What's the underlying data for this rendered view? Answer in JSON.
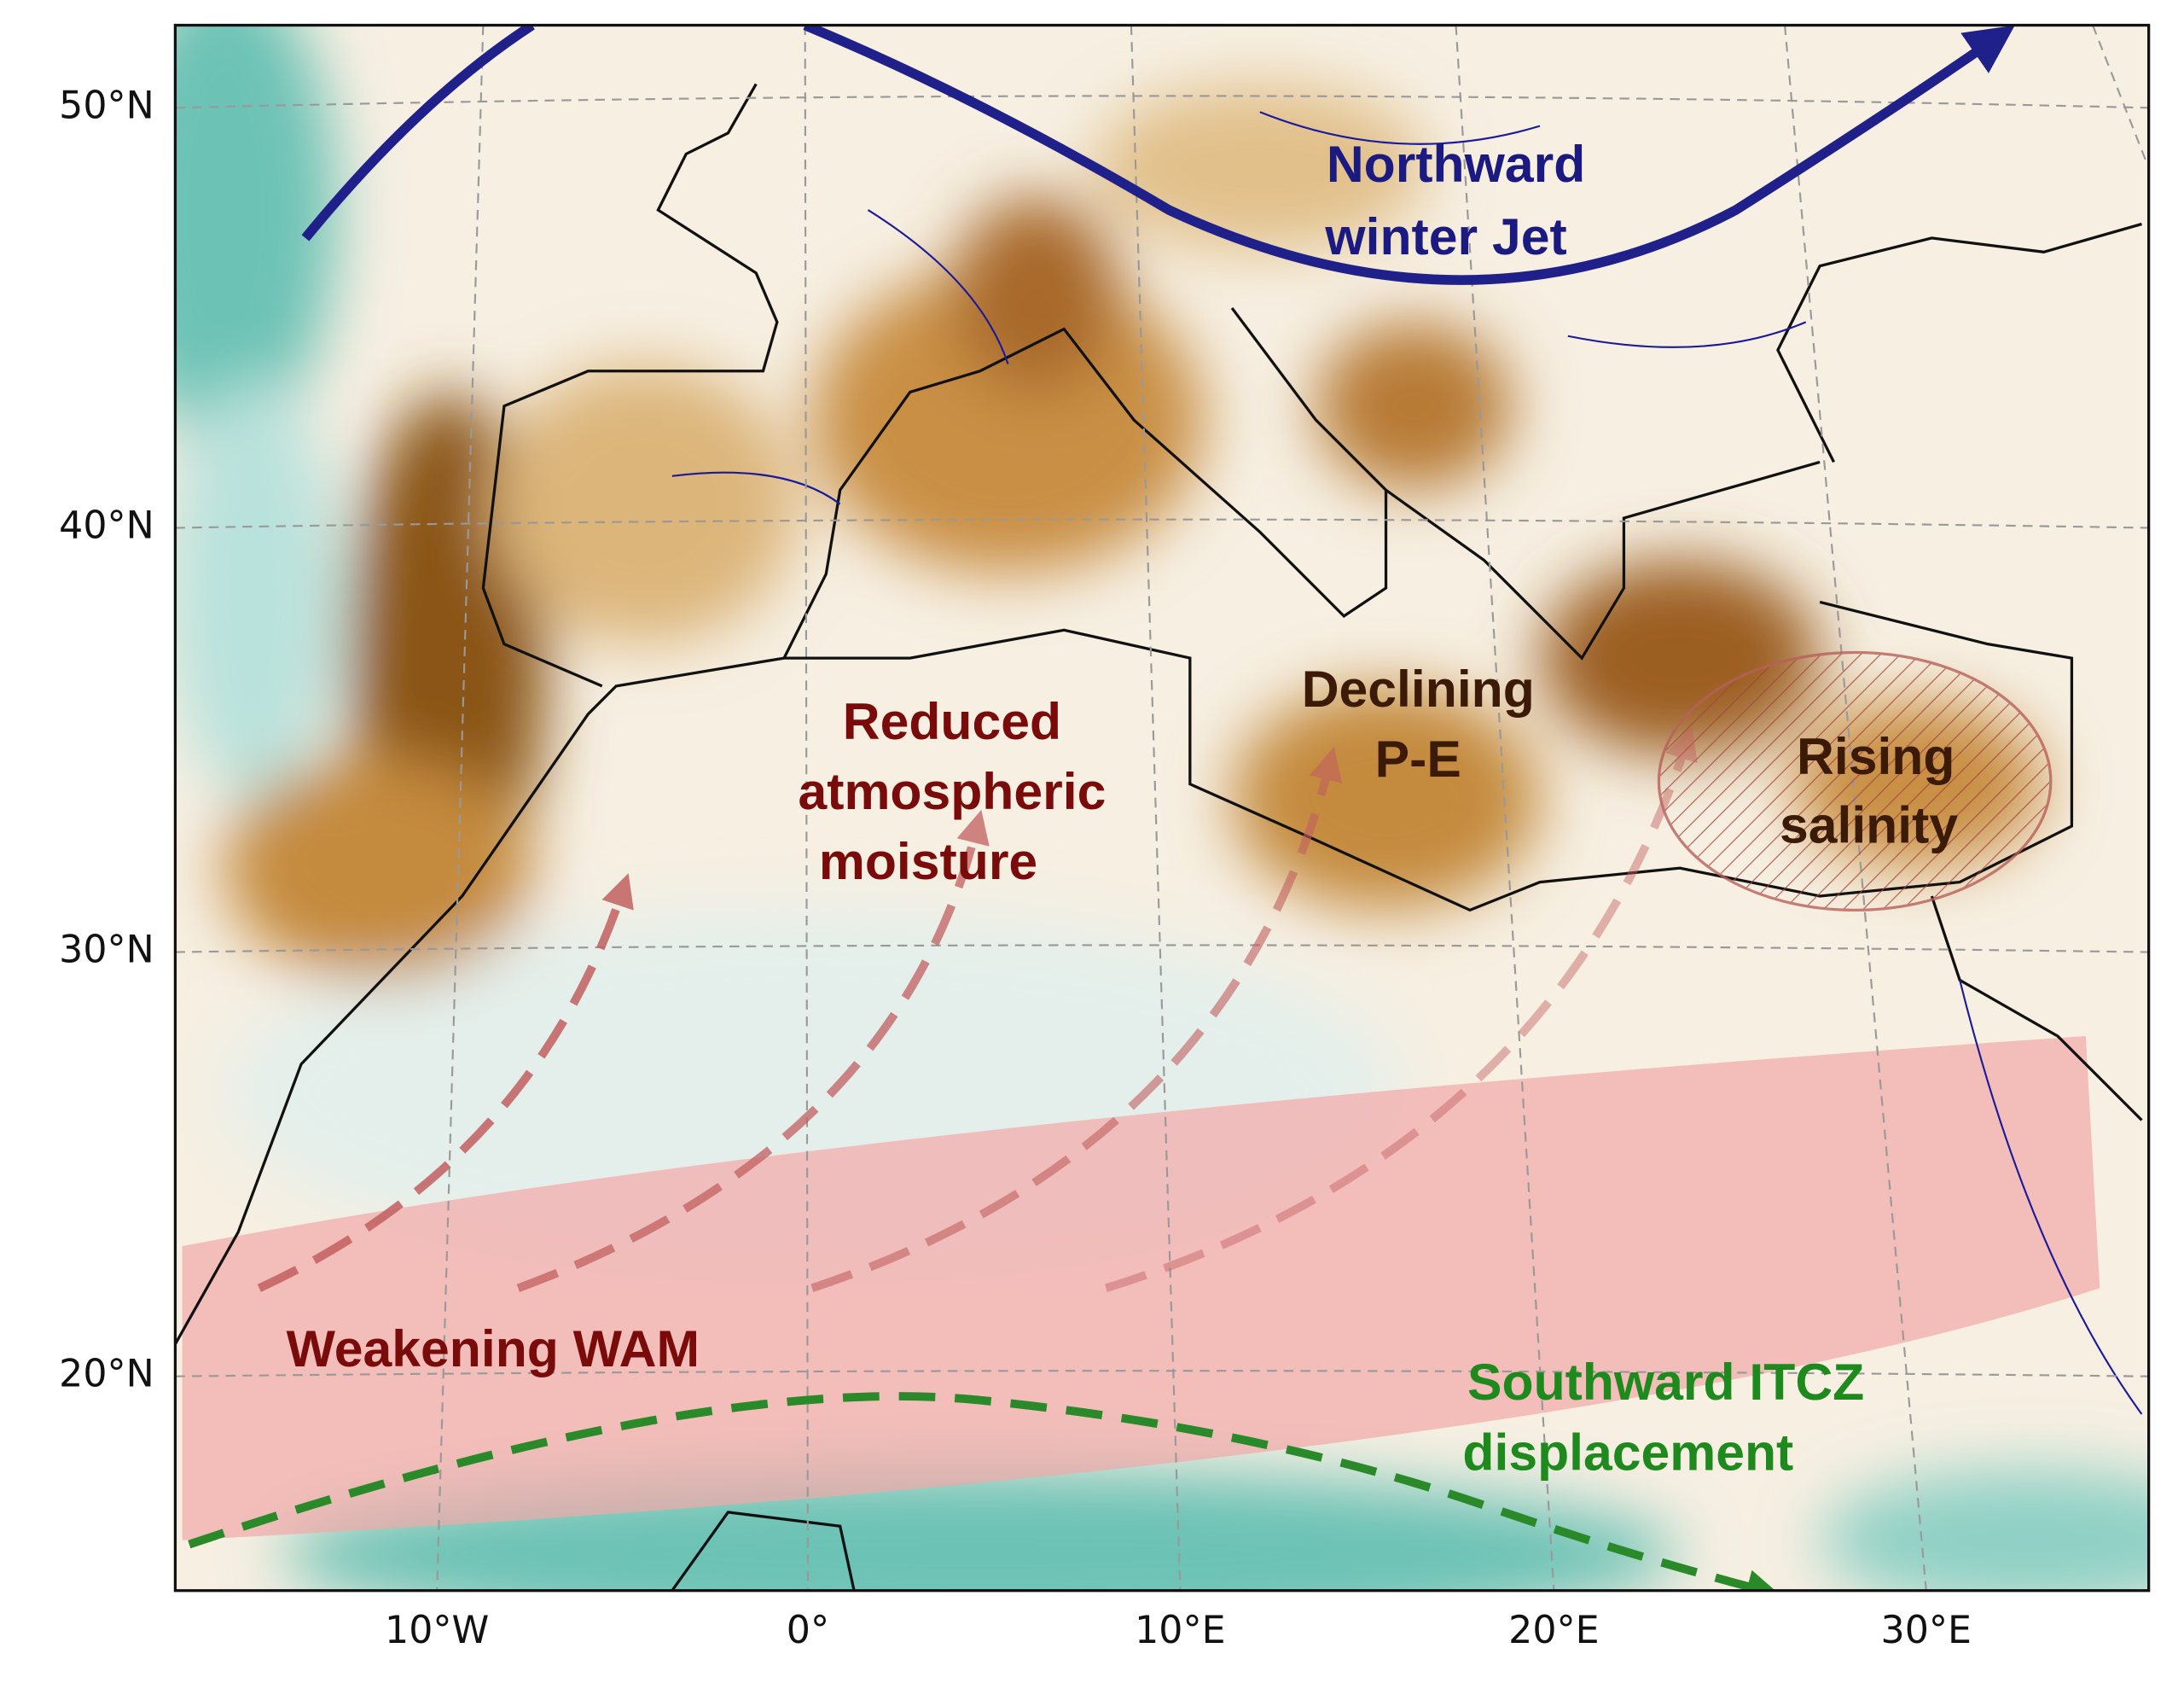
{
  "map": {
    "lat_labels": [
      "50°N",
      "40°N",
      "30°N",
      "20°N"
    ],
    "lon_labels": [
      "10°W",
      "0°",
      "10°E",
      "20°E",
      "30°E"
    ],
    "annotations": {
      "jet": [
        "Northward",
        "winter Jet"
      ],
      "pe": [
        "Declining",
        "P-E"
      ],
      "salinity": [
        "Rising",
        "salinity"
      ],
      "moisture": [
        "Reduced",
        "atmospheric",
        "moisture"
      ],
      "wam": [
        "Weakening WAM"
      ],
      "itcz": [
        "Southward ITCZ",
        "displacement"
      ]
    }
  }
}
